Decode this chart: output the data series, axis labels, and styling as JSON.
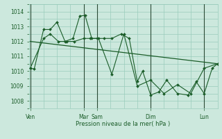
{
  "bg_color": "#cce8dd",
  "grid_color": "#99ccbb",
  "line_color": "#1a5c28",
  "xlabel": "Pression niveau de la mer( hPa )",
  "xlabel_color": "#1a5c28",
  "tick_color": "#1a5c28",
  "ylim": [
    1007.5,
    1014.5
  ],
  "yticks": [
    1008,
    1009,
    1010,
    1011,
    1012,
    1013,
    1014
  ],
  "xtick_positions": [
    0,
    2.0,
    2.5,
    4.5,
    6.5
  ],
  "xtick_labels": [
    "Ven",
    "Mar",
    "Sam",
    "Dim",
    "Lun"
  ],
  "xlim": [
    -0.05,
    7.0
  ],
  "series1_x": [
    0.0,
    0.15,
    0.5,
    0.75,
    1.0,
    1.3,
    1.6,
    1.85,
    2.05,
    2.3,
    2.5,
    2.75,
    3.05,
    3.4,
    3.7,
    4.0,
    4.2,
    4.5,
    4.8,
    5.1,
    5.5,
    5.9,
    6.2,
    6.5,
    6.8,
    7.0
  ],
  "series1_y": [
    1010.2,
    1010.15,
    1012.8,
    1012.8,
    1013.3,
    1012.0,
    1012.2,
    1013.7,
    1013.75,
    1012.2,
    1012.2,
    1012.2,
    1012.2,
    1012.5,
    1012.2,
    1009.3,
    1010.0,
    1008.4,
    1008.6,
    1009.4,
    1008.5,
    1008.4,
    1009.3,
    1008.5,
    1010.2,
    1010.5
  ],
  "series2_x": [
    0.0,
    0.5,
    0.75,
    1.05,
    1.35,
    1.65,
    2.0,
    2.25,
    2.55,
    3.05,
    3.5,
    4.0,
    4.5,
    5.0,
    5.5,
    6.0,
    6.5,
    7.0
  ],
  "series2_y": [
    1010.2,
    1012.2,
    1012.5,
    1012.0,
    1012.0,
    1012.0,
    1012.2,
    1012.2,
    1012.2,
    1009.8,
    1012.5,
    1009.0,
    1009.4,
    1008.5,
    1009.1,
    1008.5,
    1010.2,
    1010.5
  ],
  "trend_x": [
    0.0,
    7.0
  ],
  "trend_y": [
    1012.0,
    1010.5
  ],
  "vlines_x": [
    0.0,
    2.0,
    2.5,
    4.5,
    6.5
  ]
}
